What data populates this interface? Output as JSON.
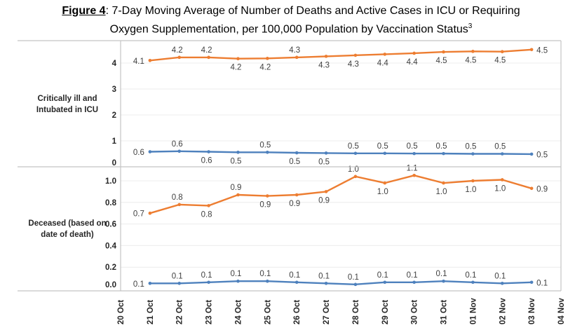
{
  "title": {
    "figure_label": "Figure 4",
    "line1_rest": ": 7-Day Moving Average of Number of Deaths and Active Cases in ICU or Requiring",
    "line2": "Oxygen Supplementation, per 100,000 Population by Vaccination Status",
    "footnote_marker": "3"
  },
  "colors": {
    "orange": "#ED7D31",
    "blue": "#4E81BD",
    "gridline": "#ECECEC",
    "border": "#C4C4C4",
    "data_label": "#404040"
  },
  "chart_data": {
    "type": "line",
    "categories": [
      "20 Oct",
      "21 Oct",
      "22 Oct",
      "23 Oct",
      "24 Oct",
      "25 Oct",
      "26 Oct",
      "27 Oct",
      "28 Oct",
      "29 Oct",
      "30 Oct",
      "31 Oct",
      "01 Nov",
      "02 Nov",
      "03 Nov",
      "04 Nov"
    ],
    "grid": true,
    "legend": "none",
    "panels": [
      {
        "id": "icu",
        "row_label_lines": [
          "Critically ill and",
          "Intubated in ICU"
        ],
        "ytick_values": [
          0,
          1,
          2,
          3,
          4
        ],
        "ytick_labels": [
          "0",
          "1",
          "2",
          "3",
          "4"
        ],
        "ylim": [
          0,
          4.86
        ],
        "series": [
          {
            "name": "orange-line",
            "color": "#ED7D31",
            "start_index": 1,
            "labels": [
              "4.1",
              "4.2",
              "4.2",
              "4.2",
              "4.2",
              "4.3",
              "4.3",
              "4.3",
              "4.4",
              "4.4",
              "4.5",
              "4.5",
              "4.5",
              "4.5"
            ],
            "values": [
              4.1,
              4.2,
              4.2,
              4.2,
              4.2,
              4.3,
              4.3,
              4.3,
              4.4,
              4.4,
              4.5,
              4.5,
              4.5,
              4.5
            ],
            "plot_values": [
              4.1,
              4.22,
              4.22,
              4.17,
              4.18,
              4.22,
              4.26,
              4.3,
              4.34,
              4.38,
              4.43,
              4.45,
              4.44,
              4.52
            ],
            "label_side": [
              "left",
              "above",
              "above",
              "below",
              "below",
              "above",
              "below",
              "below",
              "below",
              "below",
              "below",
              "below",
              "below",
              "right"
            ]
          },
          {
            "name": "blue-line",
            "color": "#4E81BD",
            "start_index": 1,
            "labels": [
              "0.6",
              "0.6",
              "0.6",
              "0.5",
              "0.5",
              "0.5",
              "0.5",
              "0.5",
              "0.5",
              "0.5",
              "0.5",
              "0.5",
              "0.5",
              "0.5"
            ],
            "values": [
              0.6,
              0.6,
              0.6,
              0.5,
              0.5,
              0.5,
              0.5,
              0.5,
              0.5,
              0.5,
              0.5,
              0.5,
              0.5,
              0.5
            ],
            "plot_values": [
              0.58,
              0.6,
              0.58,
              0.56,
              0.56,
              0.54,
              0.53,
              0.52,
              0.52,
              0.51,
              0.51,
              0.5,
              0.5,
              0.49
            ],
            "label_side": [
              "left",
              "above",
              "below",
              "below",
              "above",
              "below",
              "below",
              "above",
              "above",
              "above",
              "above",
              "above",
              "above",
              "right"
            ]
          }
        ]
      },
      {
        "id": "deceased",
        "row_label_lines": [
          "Deceased (based on",
          "date of death)"
        ],
        "ytick_values": [
          0,
          0.2,
          0.4,
          0.6,
          0.8,
          1.0
        ],
        "ytick_labels": [
          "0.0",
          "0.2",
          "0.4",
          "0.6",
          "0.8",
          "1.0"
        ],
        "ylim": [
          0,
          1.13
        ],
        "series": [
          {
            "name": "orange-line",
            "color": "#ED7D31",
            "start_index": 1,
            "labels": [
              "0.7",
              "0.8",
              "0.8",
              "0.9",
              "0.9",
              "0.9",
              "0.9",
              "1.0",
              "1.0",
              "1.1",
              "1.0",
              "1.0",
              "1.0",
              "0.9"
            ],
            "values": [
              0.7,
              0.8,
              0.8,
              0.9,
              0.9,
              0.9,
              0.9,
              1.0,
              1.0,
              1.1,
              1.0,
              1.0,
              1.0,
              0.9
            ],
            "plot_values": [
              0.7,
              0.78,
              0.77,
              0.87,
              0.86,
              0.87,
              0.9,
              1.04,
              0.98,
              1.05,
              0.98,
              1.0,
              1.01,
              0.93
            ],
            "label_side": [
              "left",
              "above",
              "below",
              "above",
              "below",
              "below",
              "below",
              "above",
              "below",
              "above",
              "below",
              "below",
              "below",
              "right"
            ]
          },
          {
            "name": "blue-line",
            "color": "#4E81BD",
            "start_index": 1,
            "labels": [
              "0.1",
              "0.1",
              "0.1",
              "0.1",
              "0.1",
              "0.1",
              "0.1",
              "0.1",
              "0.1",
              "0.1",
              "0.1",
              "0.1",
              "0.1",
              "0.1"
            ],
            "values": [
              0.1,
              0.1,
              0.1,
              0.1,
              0.1,
              0.1,
              0.1,
              0.1,
              0.1,
              0.1,
              0.1,
              0.1,
              0.1,
              0.1
            ],
            "plot_values": [
              0.05,
              0.05,
              0.06,
              0.07,
              0.07,
              0.06,
              0.05,
              0.04,
              0.06,
              0.06,
              0.07,
              0.06,
              0.05,
              0.06
            ],
            "label_side": [
              "left",
              "above",
              "above",
              "above",
              "above",
              "above",
              "above",
              "above",
              "above",
              "above",
              "above",
              "above",
              "above",
              "right"
            ]
          }
        ]
      }
    ]
  }
}
